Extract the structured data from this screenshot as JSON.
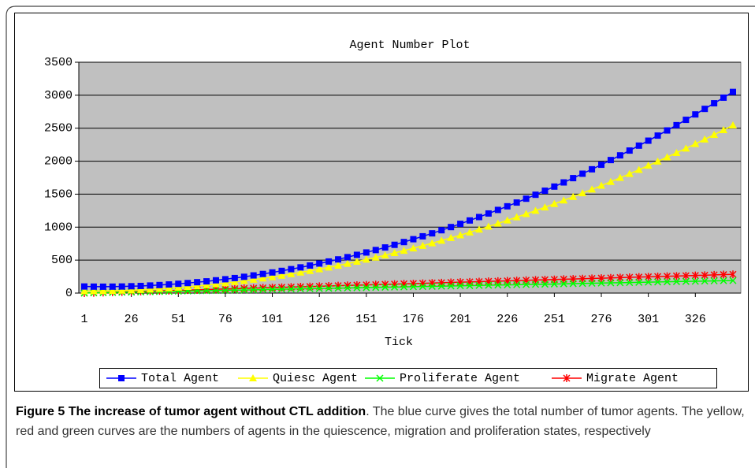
{
  "chart_data": {
    "type": "line",
    "title": "Agent Number Plot",
    "x_label": "Tick",
    "x": [
      1,
      6,
      11,
      16,
      21,
      26,
      31,
      36,
      41,
      46,
      51,
      56,
      61,
      66,
      71,
      76,
      81,
      86,
      91,
      96,
      101,
      106,
      111,
      116,
      121,
      126,
      131,
      136,
      141,
      146,
      151,
      156,
      161,
      166,
      171,
      176,
      181,
      186,
      191,
      196,
      201,
      206,
      211,
      216,
      221,
      226,
      231,
      236,
      241,
      246,
      251,
      256,
      261,
      266,
      271,
      276,
      281,
      286,
      291,
      296,
      301,
      306,
      311,
      316,
      321,
      326,
      331,
      336,
      341,
      346
    ],
    "xlim": [
      1,
      346
    ],
    "xticks": [
      1,
      26,
      51,
      76,
      101,
      126,
      151,
      176,
      201,
      226,
      251,
      276,
      301,
      326
    ],
    "ylim": [
      0,
      3500
    ],
    "yticks": [
      0,
      500,
      1000,
      1500,
      2000,
      2500,
      3000,
      3500
    ],
    "grid": true,
    "legend": "bottom",
    "series": [
      {
        "name": "Total Agent",
        "color": "#0000ff",
        "marker": "square",
        "values": [
          100,
          98,
          97,
          98,
          100,
          104,
          108,
          115,
          122,
          131,
          141,
          152,
          165,
          178,
          194,
          210,
          228,
          247,
          268,
          290,
          313,
          337,
          363,
          390,
          418,
          448,
          479,
          511,
          545,
          580,
          616,
          653,
          692,
          732,
          774,
          817,
          861,
          906,
          953,
          1001,
          1050,
          1101,
          1153,
          1207,
          1261,
          1316,
          1373,
          1431,
          1491,
          1552,
          1615,
          1678,
          1743,
          1810,
          1877,
          1946,
          2017,
          2088,
          2161,
          2236,
          2311,
          2388,
          2466,
          2546,
          2627,
          2709,
          2793,
          2878,
          2963,
          3050
        ]
      },
      {
        "name": "Quiesc Agent",
        "color": "#ffff00",
        "marker": "triangle",
        "values": [
          30,
          31,
          33,
          35,
          39,
          44,
          50,
          57,
          65,
          74,
          85,
          96,
          108,
          121,
          136,
          151,
          168,
          185,
          204,
          224,
          244,
          266,
          289,
          313,
          337,
          363,
          390,
          418,
          447,
          478,
          509,
          541,
          574,
          609,
          644,
          680,
          718,
          757,
          796,
          837,
          878,
          921,
          965,
          1010,
          1056,
          1103,
          1151,
          1200,
          1250,
          1301,
          1353,
          1406,
          1461,
          1516,
          1572,
          1630,
          1688,
          1748,
          1808,
          1870,
          1933,
          1996,
          2061,
          2127,
          2194,
          2262,
          2331,
          2401,
          2472,
          2544
        ]
      },
      {
        "name": "Proliferate Agent",
        "color": "#00ff00",
        "marker": "x",
        "values": [
          1,
          3,
          6,
          9,
          12,
          14,
          17,
          20,
          23,
          25,
          28,
          31,
          34,
          36,
          39,
          42,
          45,
          47,
          50,
          53,
          56,
          58,
          61,
          64,
          67,
          69,
          72,
          75,
          78,
          80,
          83,
          86,
          89,
          91,
          94,
          97,
          100,
          102,
          105,
          108,
          111,
          113,
          116,
          119,
          122,
          124,
          127,
          130,
          133,
          135,
          138,
          141,
          144,
          146,
          149,
          152,
          155,
          157,
          160,
          163,
          166,
          168,
          171,
          174,
          177,
          179,
          182,
          185,
          188,
          190
        ]
      },
      {
        "name": "Migrate Agent",
        "color": "#ff0000",
        "marker": "star",
        "values": [
          1,
          5,
          9,
          13,
          17,
          21,
          25,
          30,
          34,
          38,
          42,
          46,
          50,
          54,
          58,
          62,
          66,
          71,
          75,
          79,
          83,
          87,
          91,
          95,
          99,
          103,
          107,
          112,
          116,
          120,
          124,
          128,
          132,
          136,
          140,
          144,
          148,
          153,
          157,
          161,
          165,
          169,
          173,
          177,
          181,
          185,
          189,
          194,
          198,
          202,
          206,
          210,
          214,
          218,
          222,
          226,
          230,
          235,
          239,
          243,
          247,
          251,
          255,
          259,
          263,
          267,
          271,
          276,
          280,
          284
        ]
      }
    ]
  },
  "caption": {
    "label": "Figure 5",
    "title": "The increase of tumor agent without CTL addition",
    "text": ". The blue curve gives the total number of tumor agents. The yellow, red and green curves are the numbers of agents in the quiescence, migration and proliferation states, respectively"
  }
}
